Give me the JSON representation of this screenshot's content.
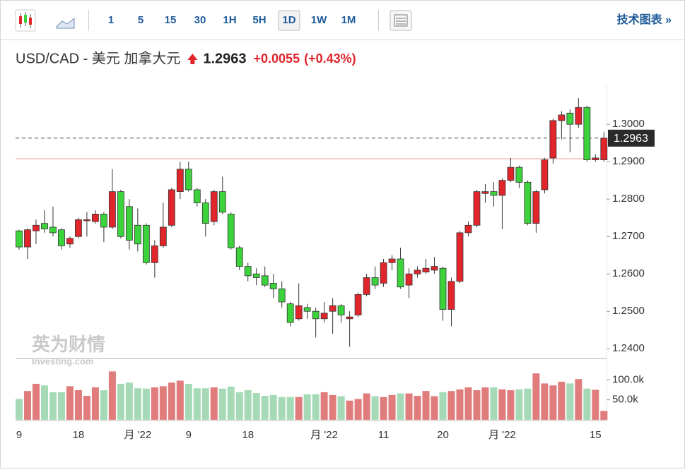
{
  "toolbar": {
    "intervals": [
      "1",
      "5",
      "15",
      "30",
      "1H",
      "5H",
      "1D",
      "1W",
      "1M"
    ],
    "selected": "1D",
    "link": "技术图表 »"
  },
  "header": {
    "title": "USD/CAD - 美元 加拿大元",
    "change": "+0.0055",
    "change_pct": "(+0.43%)"
  },
  "watermark": {
    "brand": "英为财情",
    "site": "Investing.com"
  },
  "chart_data": {
    "type": "candlestick",
    "last": 1.2963,
    "prev_close": 1.2908,
    "up_color": "#e0252b",
    "down_color": "#3bd23b",
    "vol_up_color": "#e07c7c",
    "vol_down_color": "#a6dab7",
    "categories": [
      "9",
      null,
      null,
      null,
      null,
      null,
      null,
      "18",
      null,
      null,
      null,
      null,
      null,
      null,
      "月 '22",
      null,
      null,
      null,
      null,
      null,
      "9",
      null,
      null,
      null,
      null,
      null,
      null,
      "18",
      null,
      null,
      null,
      null,
      null,
      null,
      null,
      null,
      "月 '22",
      null,
      null,
      null,
      null,
      null,
      null,
      "11",
      null,
      null,
      null,
      null,
      null,
      null,
      "20",
      null,
      null,
      null,
      null,
      null,
      null,
      "月 '22",
      null,
      null,
      null,
      null,
      null,
      null,
      null,
      null,
      null,
      null,
      "15",
      null
    ],
    "open": [
      1.2715,
      1.2672,
      1.2715,
      1.2735,
      1.2725,
      1.2718,
      1.268,
      1.27,
      1.2742,
      1.274,
      1.276,
      1.2725,
      1.282,
      1.278,
      1.273,
      1.273,
      1.263,
      1.2675,
      1.273,
      1.282,
      1.288,
      1.2825,
      1.279,
      1.274,
      1.282,
      1.276,
      1.267,
      1.262,
      1.26,
      1.2595,
      1.2575,
      1.256,
      1.252,
      1.248,
      1.251,
      1.25,
      1.248,
      1.25,
      1.2515,
      1.248,
      1.249,
      1.2545,
      1.259,
      1.2575,
      1.263,
      1.264,
      1.257,
      1.26,
      1.2605,
      1.261,
      1.2615,
      1.2505,
      1.258,
      1.271,
      1.273,
      1.2815,
      1.282,
      1.281,
      1.285,
      1.2885,
      1.2845,
      1.2735,
      1.2825,
      1.291,
      1.301,
      1.303,
      1.3,
      1.3045,
      1.2905,
      1.2905
    ],
    "high": [
      1.2718,
      1.2722,
      1.2745,
      1.277,
      1.278,
      1.2722,
      1.27,
      1.275,
      1.2765,
      1.277,
      1.2765,
      1.288,
      1.2825,
      1.28,
      1.2775,
      1.2735,
      1.269,
      1.279,
      1.283,
      1.29,
      1.29,
      1.283,
      1.28,
      1.2825,
      1.286,
      1.2765,
      1.2675,
      1.263,
      1.2615,
      1.262,
      1.26,
      1.258,
      1.2525,
      1.2575,
      1.252,
      1.251,
      1.2525,
      1.2535,
      1.252,
      1.25,
      1.255,
      1.26,
      1.262,
      1.264,
      1.265,
      1.267,
      1.2615,
      1.262,
      1.264,
      1.2645,
      1.262,
      1.259,
      1.2715,
      1.274,
      1.2825,
      1.284,
      1.2845,
      1.2855,
      1.291,
      1.289,
      1.285,
      1.2825,
      1.291,
      1.3015,
      1.3035,
      1.304,
      1.307,
      1.305,
      1.292,
      1.298
    ],
    "low": [
      1.2665,
      1.264,
      1.268,
      1.271,
      1.27,
      1.2665,
      1.267,
      1.2695,
      1.27,
      1.2735,
      1.2685,
      1.272,
      1.2695,
      1.2665,
      1.266,
      1.2625,
      1.259,
      1.267,
      1.2725,
      1.28,
      1.282,
      1.278,
      1.27,
      1.273,
      1.276,
      1.2665,
      1.261,
      1.258,
      1.257,
      1.2565,
      1.2535,
      1.251,
      1.246,
      1.2475,
      1.248,
      1.243,
      1.247,
      1.244,
      1.247,
      1.2405,
      1.2485,
      1.254,
      1.256,
      1.2565,
      1.261,
      1.256,
      1.2535,
      1.259,
      1.26,
      1.26,
      1.2475,
      1.246,
      1.2575,
      1.27,
      1.2725,
      1.279,
      1.278,
      1.272,
      1.2845,
      1.283,
      1.273,
      1.271,
      1.2815,
      1.2895,
      1.296,
      1.2925,
      1.299,
      1.29,
      1.29,
      1.29
    ],
    "close": [
      1.2672,
      1.2718,
      1.273,
      1.272,
      1.271,
      1.2675,
      1.2695,
      1.2745,
      1.2745,
      1.276,
      1.2725,
      1.282,
      1.27,
      1.269,
      1.268,
      1.263,
      1.2675,
      1.2725,
      1.2825,
      1.288,
      1.2825,
      1.279,
      1.2735,
      1.282,
      1.2765,
      1.267,
      1.262,
      1.2595,
      1.259,
      1.257,
      1.256,
      1.2525,
      1.247,
      1.2515,
      1.25,
      1.248,
      1.2495,
      1.2515,
      1.249,
      1.2485,
      1.2545,
      1.259,
      1.257,
      1.263,
      1.264,
      1.2565,
      1.26,
      1.261,
      1.2615,
      1.262,
      1.2505,
      1.258,
      1.271,
      1.273,
      1.282,
      1.282,
      1.281,
      1.285,
      1.2885,
      1.2845,
      1.2735,
      1.282,
      1.2905,
      1.301,
      1.3025,
      1.3,
      1.3045,
      1.2905,
      1.291,
      1.2963
    ],
    "volume": [
      52000,
      72000,
      90000,
      86000,
      69000,
      69000,
      84000,
      74000,
      60000,
      81000,
      74000,
      121000,
      90000,
      93000,
      79000,
      78000,
      81000,
      84000,
      93000,
      98000,
      90000,
      79000,
      79000,
      81000,
      78000,
      83000,
      69000,
      74000,
      67000,
      60000,
      62000,
      57000,
      57000,
      57000,
      64000,
      64000,
      69000,
      62000,
      59000,
      48000,
      52000,
      66000,
      59000,
      57000,
      62000,
      66000,
      66000,
      60000,
      72000,
      59000,
      69000,
      72000,
      76000,
      81000,
      74000,
      81000,
      81000,
      76000,
      74000,
      76000,
      78000,
      116000,
      91000,
      86000,
      95000,
      91000,
      102000,
      78000,
      75000,
      22000
    ],
    "ylim": [
      1.2374,
      1.3106
    ],
    "yticks": [
      {
        "value": 1.3,
        "label": "1.3000"
      },
      {
        "value": 1.29,
        "label": "1.2900"
      },
      {
        "value": 1.28,
        "label": "1.2800"
      },
      {
        "value": 1.27,
        "label": "1.2700"
      },
      {
        "value": 1.26,
        "label": "1.2600"
      },
      {
        "value": 1.25,
        "label": "1.2500"
      },
      {
        "value": 1.24,
        "label": "1.2400"
      }
    ],
    "vol_ylim": [
      0,
      150000
    ],
    "vol_ticks": [
      {
        "value": 100000,
        "label": "100.0k"
      },
      {
        "value": 50000,
        "label": "50.0k"
      }
    ]
  }
}
